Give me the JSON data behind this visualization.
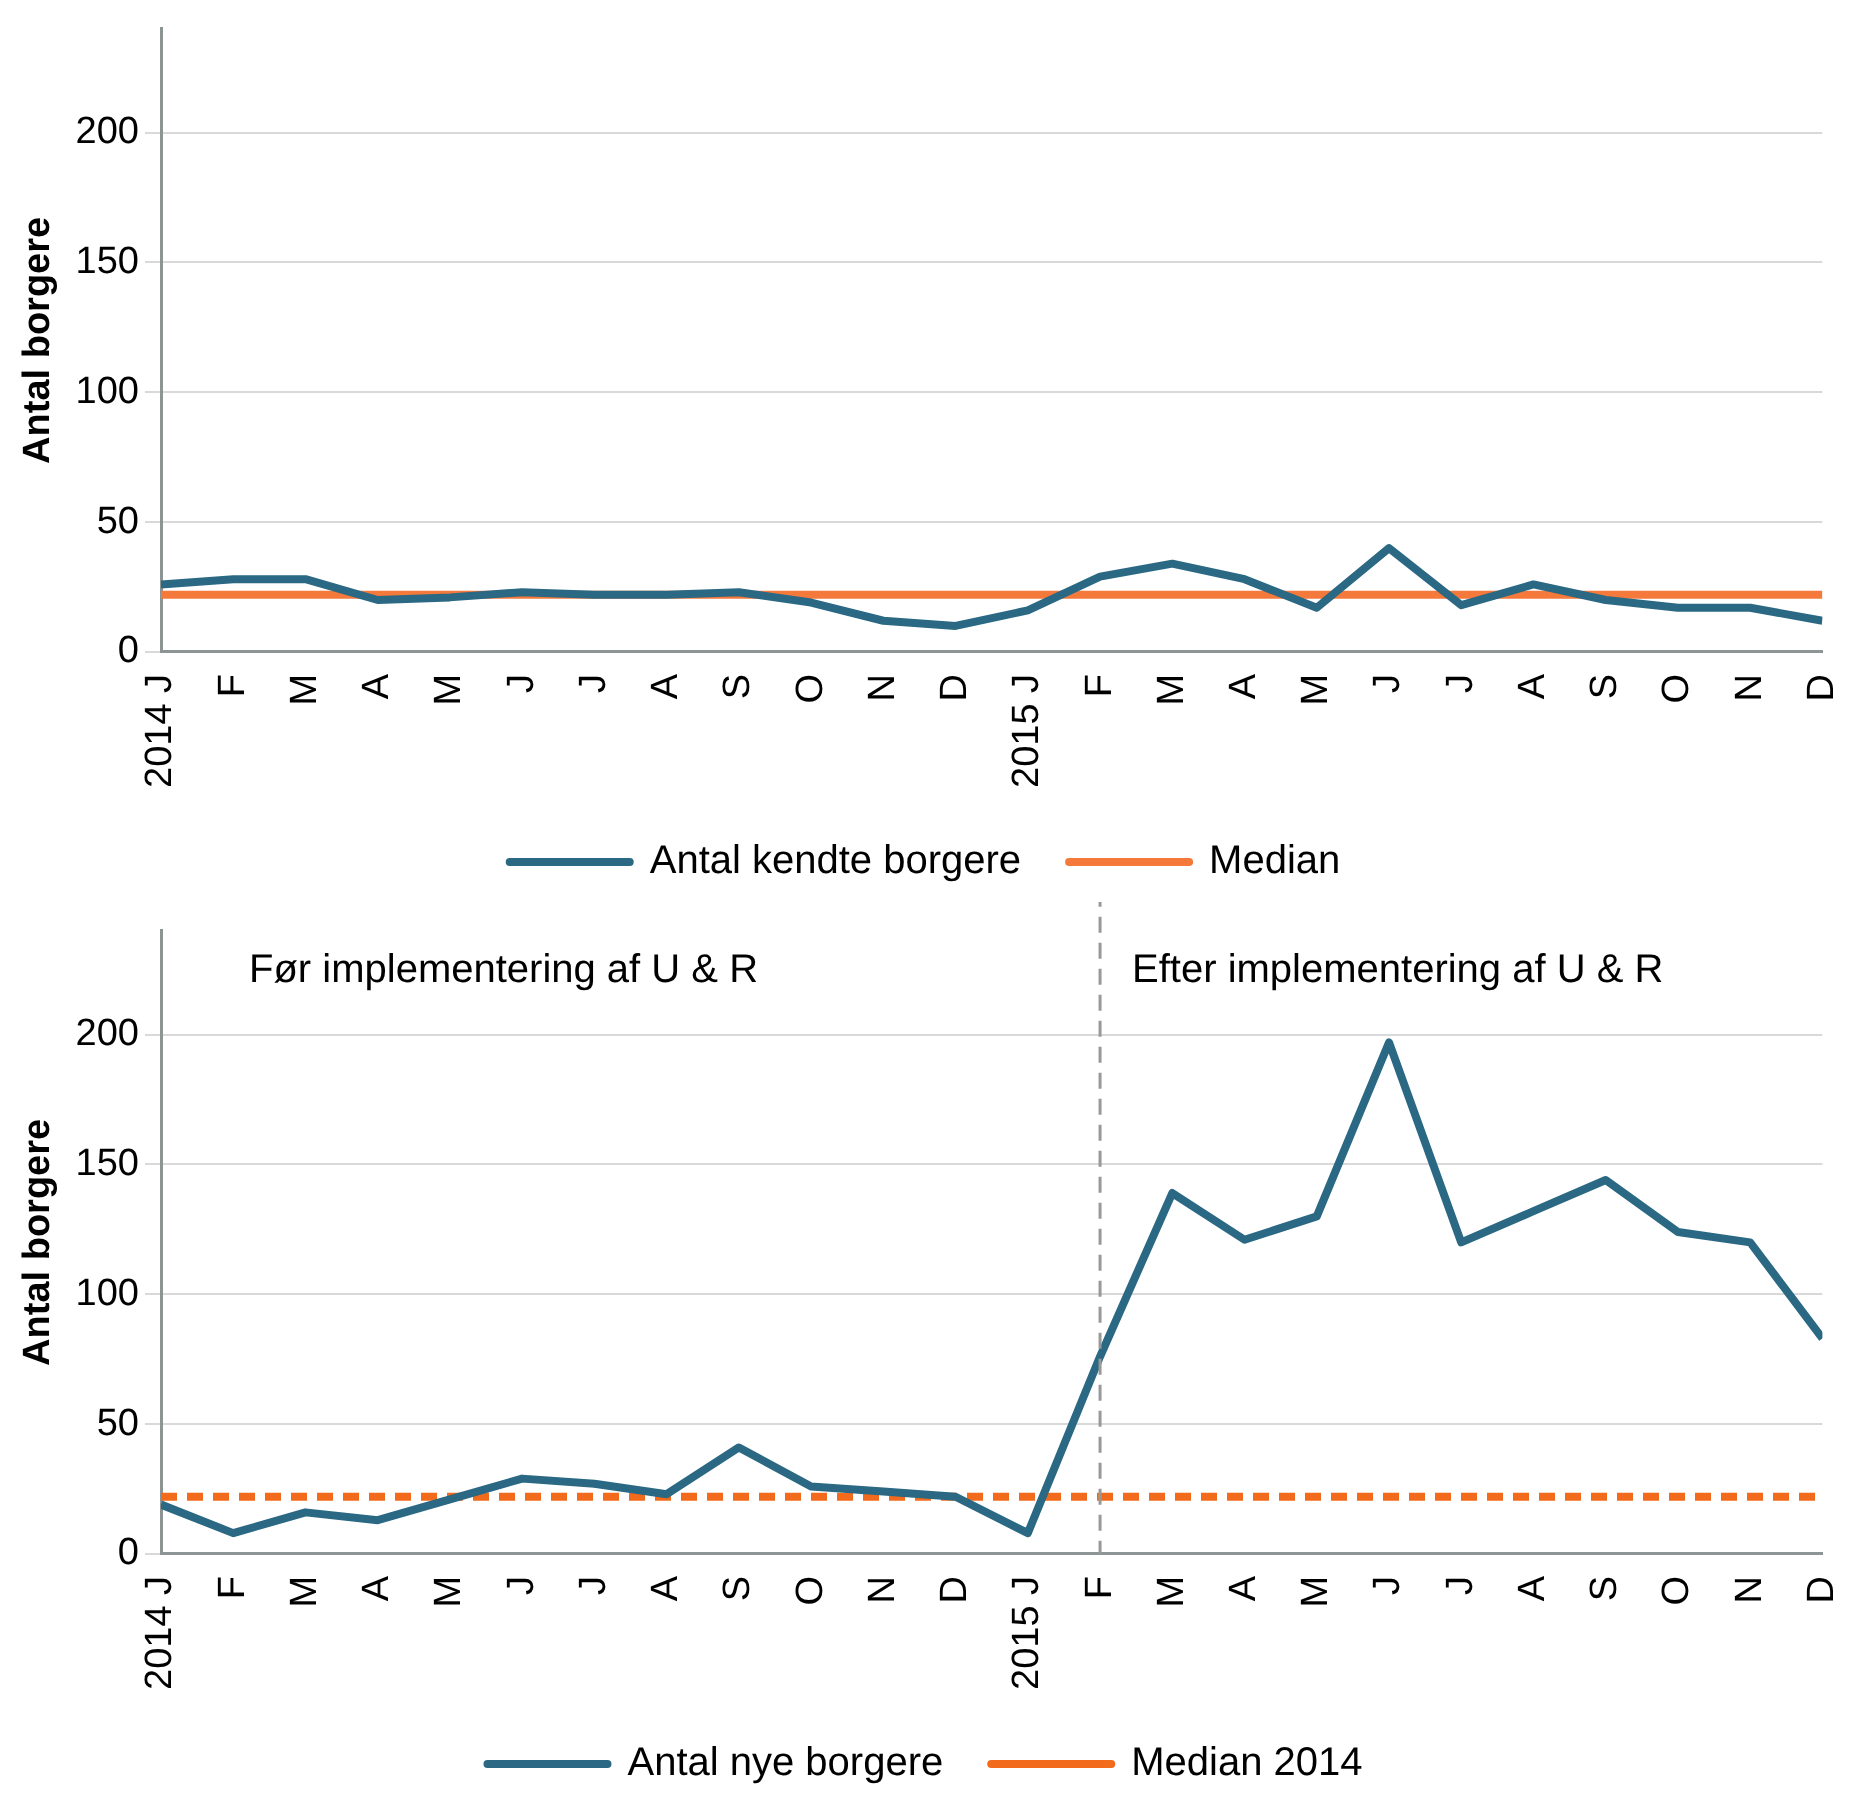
{
  "chart_data": [
    {
      "type": "line",
      "ylabel": "Antal borgere",
      "x": [
        "2014-01",
        "2014-02",
        "2014-03",
        "2014-04",
        "2014-05",
        "2014-06",
        "2014-07",
        "2014-08",
        "2014-09",
        "2014-10",
        "2014-11",
        "2014-12",
        "2015-01",
        "2015-02",
        "2015-03",
        "2015-04",
        "2015-05",
        "2015-06",
        "2015-07",
        "2015-08",
        "2015-09",
        "2015-10",
        "2015-11",
        "2015-12"
      ],
      "xlim": [
        "2014-01",
        "2015-12"
      ],
      "xticks": [
        {
          "value": "2014-01",
          "label": "2014 J"
        },
        {
          "value": "2014-02",
          "label": "F"
        },
        {
          "value": "2014-03",
          "label": "M"
        },
        {
          "value": "2014-04",
          "label": "A"
        },
        {
          "value": "2014-05",
          "label": "M"
        },
        {
          "value": "2014-06",
          "label": "J"
        },
        {
          "value": "2014-07",
          "label": "J"
        },
        {
          "value": "2014-08",
          "label": "A"
        },
        {
          "value": "2014-09",
          "label": "S"
        },
        {
          "value": "2014-10",
          "label": "O"
        },
        {
          "value": "2014-11",
          "label": "N"
        },
        {
          "value": "2014-12",
          "label": "D"
        },
        {
          "value": "2015-01",
          "label": "2015 J"
        },
        {
          "value": "2015-02",
          "label": "F"
        },
        {
          "value": "2015-03",
          "label": "M"
        },
        {
          "value": "2015-04",
          "label": "A"
        },
        {
          "value": "2015-05",
          "label": "M"
        },
        {
          "value": "2015-06",
          "label": "J"
        },
        {
          "value": "2015-07",
          "label": "J"
        },
        {
          "value": "2015-08",
          "label": "A"
        },
        {
          "value": "2015-09",
          "label": "S"
        },
        {
          "value": "2015-10",
          "label": "O"
        },
        {
          "value": "2015-11",
          "label": "N"
        },
        {
          "value": "2015-12",
          "label": "D"
        }
      ],
      "ylim": [
        0,
        240
      ],
      "yticks": [
        0,
        50,
        100,
        150,
        200
      ],
      "grid": "y",
      "legend": "bottom",
      "marker": "none",
      "series": [
        {
          "name": "Median",
          "color": "#f4793b",
          "values": [
            22,
            22,
            22,
            22,
            22,
            22,
            22,
            22,
            22,
            22,
            22,
            22,
            22,
            22,
            22,
            22,
            22,
            22,
            22,
            22,
            22,
            22,
            22,
            22
          ]
        },
        {
          "name": "Antal kendte borgere",
          "color": "#2a6883",
          "values": [
            26,
            28,
            28,
            20,
            21,
            23,
            22,
            22,
            23,
            19,
            12,
            10,
            16,
            29,
            34,
            28,
            17,
            40,
            18,
            26,
            20,
            17,
            17,
            12
          ]
        }
      ]
    },
    {
      "type": "line",
      "ylabel": "Antal borgere",
      "x": [
        "2014-01",
        "2014-02",
        "2014-03",
        "2014-04",
        "2014-05",
        "2014-06",
        "2014-07",
        "2014-08",
        "2014-09",
        "2014-10",
        "2014-11",
        "2014-12",
        "2015-01",
        "2015-02",
        "2015-03",
        "2015-04",
        "2015-05",
        "2015-06",
        "2015-07",
        "2015-08",
        "2015-09",
        "2015-10",
        "2015-11",
        "2015-12"
      ],
      "xlim": [
        "2014-01",
        "2015-12"
      ],
      "xticks": [
        {
          "value": "2014-01",
          "label": "2014 J"
        },
        {
          "value": "2014-02",
          "label": "F"
        },
        {
          "value": "2014-03",
          "label": "M"
        },
        {
          "value": "2014-04",
          "label": "A"
        },
        {
          "value": "2014-05",
          "label": "M"
        },
        {
          "value": "2014-06",
          "label": "J"
        },
        {
          "value": "2014-07",
          "label": "J"
        },
        {
          "value": "2014-08",
          "label": "A"
        },
        {
          "value": "2014-09",
          "label": "S"
        },
        {
          "value": "2014-10",
          "label": "O"
        },
        {
          "value": "2014-11",
          "label": "N"
        },
        {
          "value": "2014-12",
          "label": "D"
        },
        {
          "value": "2015-01",
          "label": "2015 J"
        },
        {
          "value": "2015-02",
          "label": "F"
        },
        {
          "value": "2015-03",
          "label": "M"
        },
        {
          "value": "2015-04",
          "label": "A"
        },
        {
          "value": "2015-05",
          "label": "M"
        },
        {
          "value": "2015-06",
          "label": "J"
        },
        {
          "value": "2015-07",
          "label": "J"
        },
        {
          "value": "2015-08",
          "label": "A"
        },
        {
          "value": "2015-09",
          "label": "S"
        },
        {
          "value": "2015-10",
          "label": "O"
        },
        {
          "value": "2015-11",
          "label": "N"
        },
        {
          "value": "2015-12",
          "label": "D"
        }
      ],
      "ylim": [
        0,
        240
      ],
      "yticks": [
        0,
        50,
        100,
        150,
        200
      ],
      "grid": "y",
      "legend": "bottom",
      "marker": "none",
      "ref_lines": [
        {
          "axis": "x",
          "value": "2015-02",
          "color": "#999999",
          "line_style": "dashed"
        }
      ],
      "annotations": [
        "Før implementering af U & R",
        "Efter implementering af U & R"
      ],
      "series": [
        {
          "name": "Median 2014",
          "color": "#f26b1d",
          "line_style": "dashed",
          "values": [
            22,
            22,
            22,
            22,
            22,
            22,
            22,
            22,
            22,
            22,
            22,
            22,
            22,
            22,
            22,
            22,
            22,
            22,
            22,
            22,
            22,
            22,
            22,
            22
          ]
        },
        {
          "name": "Antal nye borgere",
          "color": "#2a6883",
          "values": [
            19,
            8,
            16,
            13,
            21,
            29,
            27,
            23,
            41,
            26,
            24,
            22,
            8,
            76,
            139,
            121,
            130,
            197,
            120,
            132,
            144,
            124,
            120,
            83
          ]
        }
      ]
    }
  ]
}
